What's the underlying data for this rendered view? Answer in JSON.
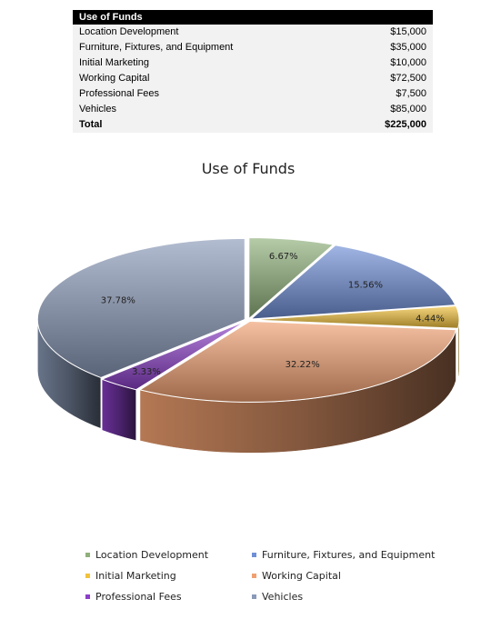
{
  "table": {
    "header": "Use of Funds",
    "rows": [
      {
        "label": "Location Development",
        "amount": "$15,000"
      },
      {
        "label": "Furniture, Fixtures, and Equipment",
        "amount": "$35,000"
      },
      {
        "label": "Initial Marketing",
        "amount": "$10,000"
      },
      {
        "label": "Working Capital",
        "amount": "$72,500"
      },
      {
        "label": "Professional Fees",
        "amount": "$7,500"
      },
      {
        "label": "Vehicles",
        "amount": "$85,000"
      }
    ],
    "total_label": "Total",
    "total_amount": "$225,000"
  },
  "chart_data": {
    "type": "pie",
    "title": "Use of Funds",
    "legend_position": "bottom",
    "categories": [
      "Location Development",
      "Furniture, Fixtures, and Equipment",
      "Initial Marketing",
      "Working Capital",
      "Professional Fees",
      "Vehicles"
    ],
    "values": [
      15000,
      35000,
      10000,
      72500,
      7500,
      85000
    ],
    "labels": [
      "6.67%",
      "15.56%",
      "4.44%",
      "32.22%",
      "3.33%",
      "37.78%"
    ],
    "colors": [
      "#8fb07a",
      "#6f8fd6",
      "#f2c23a",
      "#f0a070",
      "#8b3fc8",
      "#8a9ab8"
    ]
  }
}
